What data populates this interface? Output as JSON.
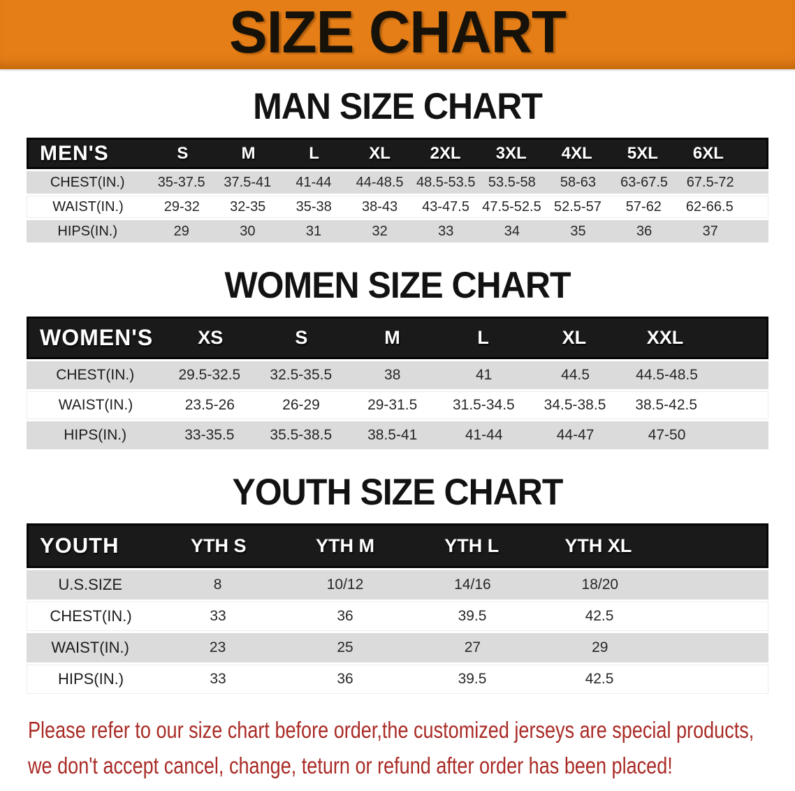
{
  "banner": {
    "title": "SIZE CHART",
    "bg_color": "#E67E17",
    "text_color": "#171209"
  },
  "sections": [
    {
      "title": "MAN SIZE CHART",
      "header_label": "MEN'S",
      "columns": [
        "S",
        "M",
        "L",
        "XL",
        "2XL",
        "3XL",
        "4XL",
        "5XL",
        "6XL"
      ],
      "rows": [
        {
          "label": "CHEST(IN.)",
          "values": [
            "35-37.5",
            "37.5-41",
            "41-44",
            "44-48.5",
            "48.5-53.5",
            "53.5-58",
            "58-63",
            "63-67.5",
            "67.5-72"
          ]
        },
        {
          "label": "WAIST(IN.)",
          "values": [
            "29-32",
            "32-35",
            "35-38",
            "38-43",
            "43-47.5",
            "47.5-52.5",
            "52.5-57",
            "57-62",
            "62-66.5"
          ]
        },
        {
          "label": "HIPS(IN.)",
          "values": [
            "29",
            "30",
            "31",
            "32",
            "33",
            "34",
            "35",
            "36",
            "37"
          ]
        }
      ]
    },
    {
      "title": "WOMEN SIZE CHART",
      "header_label": "WOMEN'S",
      "columns": [
        "XS",
        "S",
        "M",
        "L",
        "XL",
        "XXL"
      ],
      "rows": [
        {
          "label": "CHEST(IN.)",
          "values": [
            "29.5-32.5",
            "32.5-35.5",
            "38",
            "41",
            "44.5",
            "44.5-48.5"
          ]
        },
        {
          "label": "WAIST(IN.)",
          "values": [
            "23.5-26",
            "26-29",
            "29-31.5",
            "31.5-34.5",
            "34.5-38.5",
            "38.5-42.5"
          ]
        },
        {
          "label": "HIPS(IN.)",
          "values": [
            "33-35.5",
            "35.5-38.5",
            "38.5-41",
            "41-44",
            "44-47",
            "47-50"
          ]
        }
      ]
    },
    {
      "title": "YOUTH SIZE CHART",
      "header_label": "YOUTH",
      "columns": [
        "YTH S",
        "YTH M",
        "YTH L",
        "YTH XL"
      ],
      "rows": [
        {
          "label": "U.S.SIZE",
          "values": [
            "8",
            "10/12",
            "14/16",
            "18/20"
          ]
        },
        {
          "label": "CHEST(IN.)",
          "values": [
            "33",
            "36",
            "39.5",
            "42.5"
          ]
        },
        {
          "label": "WAIST(IN.)",
          "values": [
            "23",
            "25",
            "27",
            "29"
          ]
        },
        {
          "label": "HIPS(IN.)",
          "values": [
            "33",
            "36",
            "39.5",
            "42.5"
          ]
        }
      ]
    }
  ],
  "disclaimer": {
    "line1": "Please refer to our size chart before order,the customized jerseys are special products,",
    "line2": "we don't accept cancel, change, teturn or refund after order has been placed!",
    "color": "#A92B26"
  }
}
